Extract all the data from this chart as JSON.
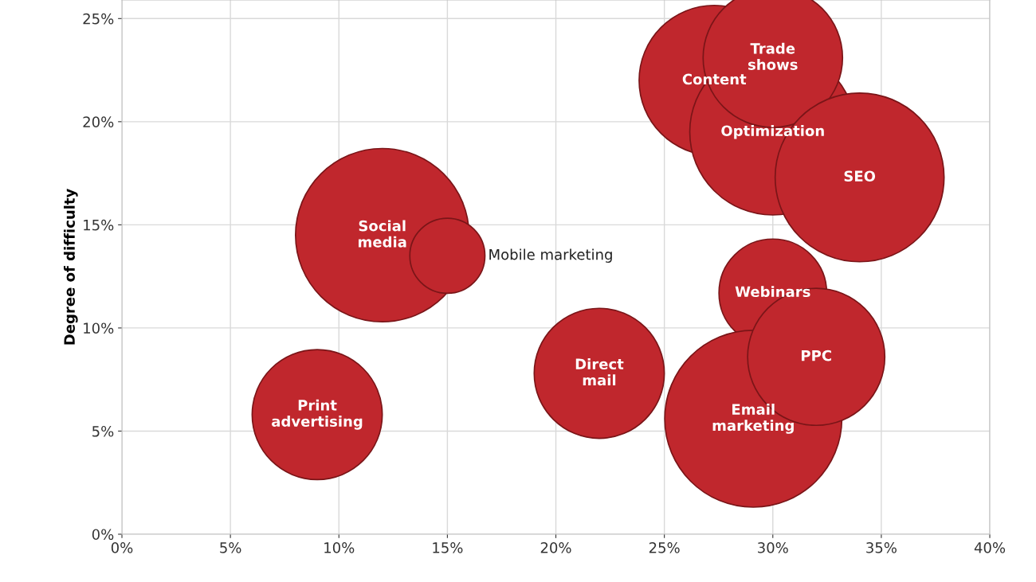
{
  "chart_data": {
    "type": "bubble",
    "ylabel": "Degree of difficulty",
    "series": [
      {
        "name": "Content",
        "color": "#c0272d",
        "x": [
          27.3
        ],
        "values": [
          22.0
        ],
        "sizes": [
          0.72
        ]
      },
      {
        "name": "Optimization",
        "color": "#c0272d",
        "x": [
          30
        ],
        "values": [
          19.5
        ],
        "sizes": [
          0.88
        ]
      },
      {
        "name": "Trade shows",
        "color": "#c0272d",
        "x": [
          30
        ],
        "values": [
          23.1
        ],
        "sizes": [
          0.62
        ]
      },
      {
        "name": "SEO",
        "color": "#c0272d",
        "x": [
          34
        ],
        "values": [
          17.3
        ],
        "sizes": [
          0.91
        ]
      },
      {
        "name": "Social media",
        "color": "#c0272d",
        "x": [
          12
        ],
        "values": [
          14.5
        ],
        "sizes": [
          0.96
        ]
      },
      {
        "name": "Mobile marketing",
        "color": "#c0272d",
        "x": [
          15
        ],
        "values": [
          13.5
        ],
        "sizes": [
          0.18
        ]
      },
      {
        "name": "Webinars",
        "color": "#c0272d",
        "x": [
          30
        ],
        "values": [
          11.7
        ],
        "sizes": [
          0.37
        ]
      },
      {
        "name": "Email marketing",
        "color": "#c0272d",
        "x": [
          29.1
        ],
        "values": [
          5.6
        ],
        "sizes": [
          1
        ]
      },
      {
        "name": "PPC",
        "color": "#c0272d",
        "x": [
          32
        ],
        "values": [
          8.6
        ],
        "sizes": [
          0.6
        ]
      },
      {
        "name": "Direct mail",
        "color": "#c0272d",
        "x": [
          22
        ],
        "values": [
          7.8
        ],
        "sizes": [
          0.54
        ]
      },
      {
        "name": "Print advertising",
        "color": "#c0272d",
        "x": [
          9
        ],
        "values": [
          5.8
        ],
        "sizes": [
          0.54
        ]
      }
    ],
    "xlim": [
      0,
      40
    ],
    "xticks": [
      {
        "value": 0,
        "label": "0%"
      },
      {
        "value": 5,
        "label": "5%"
      },
      {
        "value": 10,
        "label": "10%"
      },
      {
        "value": 15,
        "label": "15%"
      },
      {
        "value": 20,
        "label": "20%"
      },
      {
        "value": 25,
        "label": "25%"
      },
      {
        "value": 30,
        "label": "30%"
      },
      {
        "value": 35,
        "label": "35%"
      },
      {
        "value": 40,
        "label": "40%"
      }
    ],
    "ylim": [
      0,
      25.9
    ],
    "yticks": [
      {
        "value": 0,
        "label": "0%"
      },
      {
        "value": 5,
        "label": "5%"
      },
      {
        "value": 10,
        "label": "10%"
      },
      {
        "value": 15,
        "label": "15%"
      },
      {
        "value": 20,
        "label": "20%"
      },
      {
        "value": 25,
        "label": "25%"
      }
    ],
    "grid": true,
    "legend": false
  }
}
